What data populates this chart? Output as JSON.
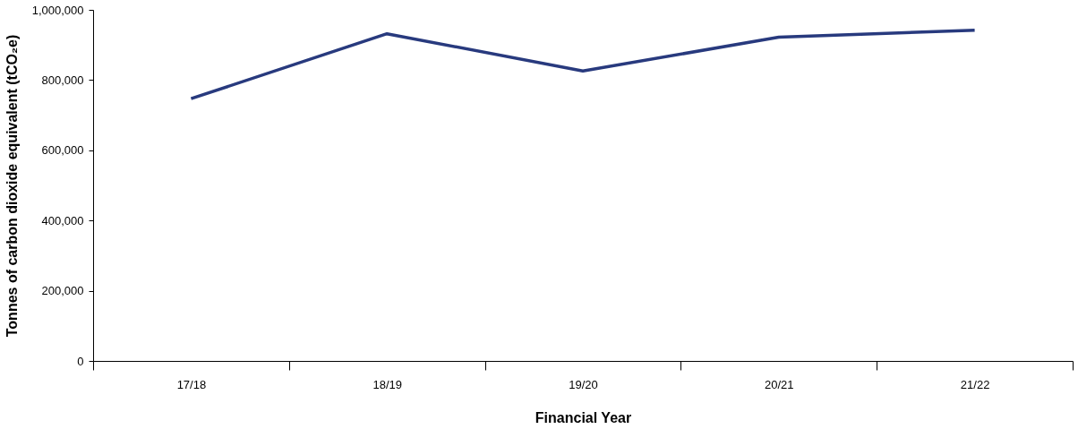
{
  "chart_data": {
    "type": "line",
    "xlabel": "Financial Year",
    "ylabel": "Tonnes of carbon dioxide equivalent (tCO₂e)",
    "categories": [
      "17/18",
      "18/19",
      "19/20",
      "20/21",
      "21/22"
    ],
    "series": [
      {
        "color": "#283a7e",
        "values": [
          747000,
          932000,
          826000,
          922000,
          942000
        ]
      }
    ],
    "ylim": [
      0,
      1000000
    ],
    "yticks": [
      0,
      {
        "value": 200000,
        "label": "200,000"
      },
      {
        "value": 400000,
        "label": "400,000"
      },
      {
        "value": 600000,
        "label": "600,000"
      },
      {
        "value": 800000,
        "label": "800,000"
      },
      {
        "value": 1000000,
        "label": "1,000,000"
      }
    ],
    "grid": false,
    "marker": "none",
    "line_style": "solid"
  }
}
